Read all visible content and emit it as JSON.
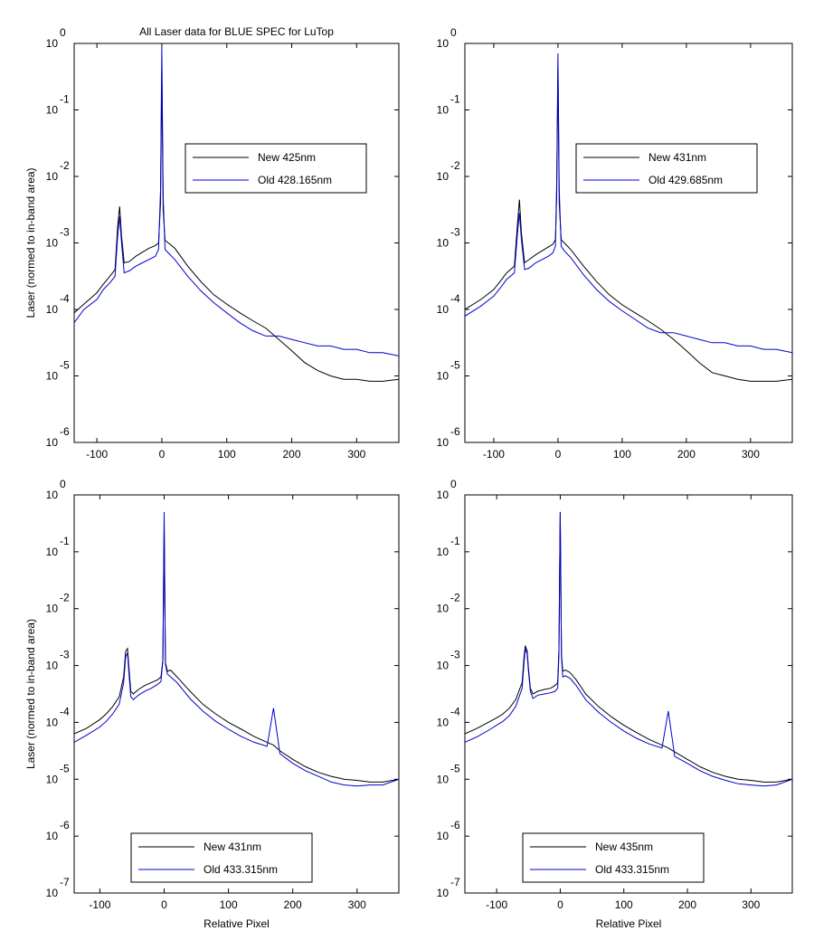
{
  "chart_data": [
    {
      "type": "line",
      "title": "All Laser data for BLUE SPEC for LuTop",
      "xlabel": "",
      "ylabel": "Laser (normed to in-band area)",
      "xlim": [
        -135,
        365
      ],
      "ylim": [
        -6,
        0
      ],
      "yscale": "log",
      "xticks": [
        "-100",
        "0",
        "100",
        "200",
        "300"
      ],
      "yticks": [
        {
          "base": "10",
          "exp": "0"
        },
        {
          "base": "10",
          "exp": "-1"
        },
        {
          "base": "10",
          "exp": "-2"
        },
        {
          "base": "10",
          "exp": "-3"
        },
        {
          "base": "10",
          "exp": "-4"
        },
        {
          "base": "10",
          "exp": "-5"
        },
        {
          "base": "10",
          "exp": "-6"
        }
      ],
      "legend_position": "upper-right",
      "series": [
        {
          "name": "New 425nm",
          "color": "#000000",
          "x": [
            -135,
            -120,
            -100,
            -90,
            -80,
            -72,
            -68,
            -65,
            -62,
            -58,
            -50,
            -40,
            -30,
            -20,
            -10,
            -5,
            -2,
            0,
            2,
            5,
            10,
            20,
            40,
            60,
            80,
            100,
            120,
            140,
            160,
            180,
            200,
            220,
            240,
            260,
            280,
            300,
            320,
            340,
            365
          ],
          "y": [
            -4.05,
            -3.92,
            -3.75,
            -3.62,
            -3.5,
            -3.4,
            -2.75,
            -2.45,
            -2.9,
            -3.3,
            -3.28,
            -3.2,
            -3.14,
            -3.08,
            -3.04,
            -3.0,
            -2.4,
            -0.4,
            -2.5,
            -2.96,
            -3.0,
            -3.08,
            -3.35,
            -3.58,
            -3.78,
            -3.92,
            -4.05,
            -4.17,
            -4.28,
            -4.45,
            -4.62,
            -4.8,
            -4.92,
            -5.0,
            -5.05,
            -5.05,
            -5.08,
            -5.08,
            -5.05
          ]
        },
        {
          "name": "Old 428.165nm",
          "color": "#0000cc",
          "x": [
            -135,
            -120,
            -100,
            -90,
            -80,
            -72,
            -68,
            -65,
            -62,
            -58,
            -50,
            -40,
            -30,
            -20,
            -10,
            -5,
            -2,
            0,
            2,
            5,
            10,
            20,
            40,
            60,
            80,
            100,
            120,
            140,
            160,
            180,
            200,
            220,
            240,
            260,
            280,
            300,
            320,
            340,
            365
          ],
          "y": [
            -4.2,
            -4.0,
            -3.85,
            -3.7,
            -3.6,
            -3.5,
            -2.9,
            -2.6,
            -3.0,
            -3.45,
            -3.42,
            -3.35,
            -3.3,
            -3.25,
            -3.2,
            -3.1,
            -2.2,
            -0.05,
            -2.3,
            -3.1,
            -3.15,
            -3.25,
            -3.5,
            -3.72,
            -3.9,
            -4.05,
            -4.2,
            -4.32,
            -4.4,
            -4.4,
            -4.45,
            -4.5,
            -4.55,
            -4.55,
            -4.6,
            -4.6,
            -4.65,
            -4.65,
            -4.7
          ]
        }
      ]
    },
    {
      "type": "line",
      "title": "",
      "xlabel": "",
      "ylabel": "",
      "xlim": [
        -145,
        365
      ],
      "ylim": [
        -6,
        0
      ],
      "yscale": "log",
      "xticks": [
        "-100",
        "0",
        "100",
        "200",
        "300"
      ],
      "yticks": [
        {
          "base": "10",
          "exp": "0"
        },
        {
          "base": "10",
          "exp": "-1"
        },
        {
          "base": "10",
          "exp": "-2"
        },
        {
          "base": "10",
          "exp": "-3"
        },
        {
          "base": "10",
          "exp": "-4"
        },
        {
          "base": "10",
          "exp": "-5"
        },
        {
          "base": "10",
          "exp": "-6"
        }
      ],
      "legend_position": "upper-right",
      "series": [
        {
          "name": "New 431nm",
          "color": "#000000",
          "x": [
            -145,
            -120,
            -100,
            -90,
            -80,
            -68,
            -63,
            -60,
            -57,
            -52,
            -45,
            -35,
            -25,
            -15,
            -8,
            -4,
            -2,
            0,
            2,
            5,
            10,
            20,
            40,
            60,
            80,
            100,
            120,
            140,
            160,
            180,
            200,
            220,
            240,
            260,
            280,
            300,
            320,
            340,
            365
          ],
          "y": [
            -4.0,
            -3.85,
            -3.7,
            -3.58,
            -3.45,
            -3.35,
            -2.7,
            -2.35,
            -2.85,
            -3.3,
            -3.25,
            -3.18,
            -3.12,
            -3.06,
            -3.02,
            -2.95,
            -2.3,
            -0.35,
            -2.4,
            -2.95,
            -3.0,
            -3.1,
            -3.35,
            -3.58,
            -3.78,
            -3.93,
            -4.05,
            -4.17,
            -4.3,
            -4.45,
            -4.62,
            -4.8,
            -4.95,
            -5.0,
            -5.05,
            -5.08,
            -5.08,
            -5.08,
            -5.05
          ]
        },
        {
          "name": "Old 429.685nm",
          "color": "#0000cc",
          "x": [
            -145,
            -120,
            -100,
            -90,
            -80,
            -68,
            -63,
            -60,
            -57,
            -52,
            -45,
            -35,
            -25,
            -15,
            -8,
            -4,
            -2,
            0,
            2,
            5,
            10,
            20,
            40,
            60,
            80,
            100,
            120,
            140,
            160,
            180,
            200,
            220,
            240,
            260,
            280,
            300,
            320,
            340,
            365
          ],
          "y": [
            -4.1,
            -3.95,
            -3.8,
            -3.68,
            -3.55,
            -3.45,
            -2.85,
            -2.55,
            -2.95,
            -3.4,
            -3.38,
            -3.3,
            -3.25,
            -3.2,
            -3.15,
            -3.05,
            -2.1,
            -0.15,
            -2.2,
            -3.05,
            -3.12,
            -3.22,
            -3.48,
            -3.7,
            -3.88,
            -4.02,
            -4.15,
            -4.28,
            -4.35,
            -4.35,
            -4.4,
            -4.45,
            -4.5,
            -4.5,
            -4.55,
            -4.55,
            -4.6,
            -4.6,
            -4.65
          ]
        }
      ]
    },
    {
      "type": "line",
      "title": "",
      "xlabel": "Relative Pixel",
      "ylabel": "Laser (normed to in-band area)",
      "xlim": [
        -140,
        365
      ],
      "ylim": [
        -7,
        0
      ],
      "yscale": "log",
      "xticks": [
        "-100",
        "0",
        "100",
        "200",
        "300"
      ],
      "yticks": [
        {
          "base": "10",
          "exp": "0"
        },
        {
          "base": "10",
          "exp": "-1"
        },
        {
          "base": "10",
          "exp": "-2"
        },
        {
          "base": "10",
          "exp": "-3"
        },
        {
          "base": "10",
          "exp": "-4"
        },
        {
          "base": "10",
          "exp": "-5"
        },
        {
          "base": "10",
          "exp": "-6"
        },
        {
          "base": "10",
          "exp": "-7"
        }
      ],
      "legend_position": "lower-center",
      "series": [
        {
          "name": "New 431nm",
          "color": "#000000",
          "x": [
            -140,
            -120,
            -100,
            -90,
            -80,
            -70,
            -63,
            -60,
            -57,
            -55,
            -52,
            -48,
            -40,
            -30,
            -20,
            -10,
            -5,
            -2,
            0,
            2,
            5,
            10,
            20,
            40,
            60,
            80,
            100,
            120,
            140,
            160,
            170,
            180,
            200,
            220,
            240,
            260,
            280,
            300,
            320,
            340,
            365
          ],
          "y": [
            -4.2,
            -4.1,
            -3.95,
            -3.85,
            -3.72,
            -3.55,
            -3.2,
            -2.75,
            -2.7,
            -3.0,
            -3.45,
            -3.5,
            -3.42,
            -3.35,
            -3.3,
            -3.25,
            -3.2,
            -2.9,
            -0.55,
            -2.95,
            -3.1,
            -3.08,
            -3.2,
            -3.45,
            -3.68,
            -3.85,
            -4.0,
            -4.12,
            -4.25,
            -4.35,
            -4.4,
            -4.5,
            -4.65,
            -4.78,
            -4.88,
            -4.95,
            -5.0,
            -5.02,
            -5.05,
            -5.05,
            -5.0
          ]
        },
        {
          "name": "Old 433.315nm",
          "color": "#0000cc",
          "x": [
            -140,
            -120,
            -100,
            -90,
            -80,
            -70,
            -63,
            -60,
            -57,
            -55,
            -52,
            -48,
            -40,
            -30,
            -20,
            -10,
            -5,
            -2,
            0,
            2,
            5,
            10,
            20,
            40,
            60,
            80,
            100,
            120,
            140,
            160,
            170,
            180,
            200,
            220,
            240,
            260,
            280,
            300,
            320,
            340,
            365
          ],
          "y": [
            -4.35,
            -4.22,
            -4.08,
            -3.98,
            -3.85,
            -3.68,
            -3.3,
            -2.85,
            -2.78,
            -3.1,
            -3.55,
            -3.6,
            -3.52,
            -3.45,
            -3.4,
            -3.33,
            -3.28,
            -2.9,
            -0.3,
            -2.98,
            -3.15,
            -3.2,
            -3.3,
            -3.58,
            -3.8,
            -3.98,
            -4.12,
            -4.25,
            -4.35,
            -4.42,
            -3.75,
            -4.55,
            -4.72,
            -4.85,
            -4.95,
            -5.05,
            -5.1,
            -5.12,
            -5.1,
            -5.1,
            -5.0
          ]
        }
      ]
    },
    {
      "type": "line",
      "title": "",
      "xlabel": "Relative Pixel",
      "ylabel": "",
      "xlim": [
        -150,
        365
      ],
      "ylim": [
        -7,
        0
      ],
      "yscale": "log",
      "xticks": [
        "-100",
        "0",
        "100",
        "200",
        "300"
      ],
      "yticks": [
        {
          "base": "10",
          "exp": "0"
        },
        {
          "base": "10",
          "exp": "-1"
        },
        {
          "base": "10",
          "exp": "-2"
        },
        {
          "base": "10",
          "exp": "-3"
        },
        {
          "base": "10",
          "exp": "-4"
        },
        {
          "base": "10",
          "exp": "-5"
        },
        {
          "base": "10",
          "exp": "-6"
        },
        {
          "base": "10",
          "exp": "-7"
        }
      ],
      "legend_position": "lower-center",
      "series": [
        {
          "name": "New 435nm",
          "color": "#000000",
          "x": [
            -150,
            -130,
            -110,
            -100,
            -90,
            -80,
            -70,
            -60,
            -57,
            -55,
            -52,
            -50,
            -47,
            -43,
            -35,
            -25,
            -15,
            -8,
            -4,
            -2,
            0,
            2,
            4,
            8,
            15,
            25,
            40,
            60,
            80,
            100,
            120,
            140,
            160,
            170,
            180,
            200,
            220,
            240,
            260,
            280,
            300,
            320,
            340,
            365
          ],
          "y": [
            -4.2,
            -4.1,
            -3.98,
            -3.92,
            -3.85,
            -3.75,
            -3.6,
            -3.3,
            -2.85,
            -2.65,
            -2.75,
            -3.05,
            -3.4,
            -3.5,
            -3.45,
            -3.42,
            -3.4,
            -3.35,
            -3.3,
            -2.7,
            -0.3,
            -2.8,
            -3.1,
            -3.08,
            -3.12,
            -3.25,
            -3.5,
            -3.72,
            -3.9,
            -4.05,
            -4.18,
            -4.3,
            -4.4,
            -4.45,
            -4.52,
            -4.65,
            -4.78,
            -4.88,
            -4.95,
            -5.0,
            -5.02,
            -5.05,
            -5.05,
            -5.0
          ]
        },
        {
          "name": "Old 433.315nm",
          "color": "#0000cc",
          "x": [
            -150,
            -130,
            -110,
            -100,
            -90,
            -80,
            -70,
            -60,
            -57,
            -55,
            -52,
            -50,
            -47,
            -43,
            -35,
            -25,
            -15,
            -8,
            -4,
            -2,
            0,
            2,
            4,
            8,
            15,
            25,
            40,
            60,
            80,
            100,
            120,
            140,
            160,
            170,
            180,
            200,
            220,
            240,
            260,
            280,
            300,
            320,
            340,
            365
          ],
          "y": [
            -4.35,
            -4.25,
            -4.12,
            -4.05,
            -3.98,
            -3.88,
            -3.72,
            -3.4,
            -2.95,
            -2.7,
            -2.8,
            -3.1,
            -3.45,
            -3.58,
            -3.52,
            -3.5,
            -3.48,
            -3.45,
            -3.4,
            -2.8,
            -0.3,
            -2.85,
            -3.2,
            -3.18,
            -3.22,
            -3.35,
            -3.6,
            -3.82,
            -4.0,
            -4.15,
            -4.28,
            -4.38,
            -4.45,
            -3.8,
            -4.6,
            -4.72,
            -4.85,
            -4.95,
            -5.02,
            -5.08,
            -5.1,
            -5.12,
            -5.1,
            -5.0
          ]
        }
      ]
    }
  ]
}
